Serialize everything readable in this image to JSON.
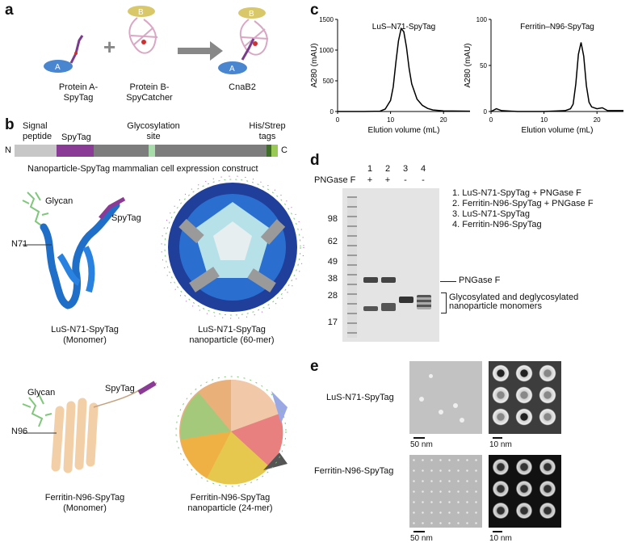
{
  "panels": {
    "a": "a",
    "b": "b",
    "c": "c",
    "d": "d",
    "e": "e"
  },
  "panel_a": {
    "circle_A": "A",
    "circle_B": "B",
    "circle_B2": "B",
    "circle_A2": "A",
    "label1": "Protein A-\nSpyTag",
    "label2": "Protein B-\nSpyCatcher",
    "label3": "CnaB2"
  },
  "panel_b": {
    "signal_peptide": "Signal\npeptide",
    "spytag": "SpyTag",
    "glyco_site": "Glycosylation\nsite",
    "his_strep": "His/Strep\ntags",
    "n_term": "N",
    "c_term": "C",
    "caption": "Nanoparticle-SpyTag mammalian cell expression construct",
    "glycan1": "Glycan",
    "spytag1": "SpyTag",
    "n71": "N71",
    "lus_mono": "LuS-N71-SpyTag\n(Monomer)",
    "lus_np": "LuS-N71-SpyTag\nnanoparticle (60-mer)",
    "glycan2": "Glycan",
    "spytag2": "SpyTag",
    "n96": "N96",
    "fer_mono": "Ferritin-N96-SpyTag\n(Monomer)",
    "fer_np": "Ferritin-N96-SpyTag\nnanoparticle (24-mer)"
  },
  "panel_c": {
    "chart_data": [
      {
        "type": "line",
        "title": "LuS–N71-SpyTag",
        "xlabel": "Elution volume (mL)",
        "ylabel": "A280 (mAU)",
        "xlim": [
          0,
          25
        ],
        "ylim": [
          0,
          1500
        ],
        "xticks": [
          "0",
          "10",
          "20"
        ],
        "yticks": [
          "0",
          "500",
          "1000",
          "1500"
        ],
        "series": [
          {
            "x": [
              0,
              5,
              8,
              9,
              10,
              10.5,
              11,
              11.5,
              12,
              12.5,
              13,
              13.5,
              14,
              15,
              16,
              17,
              18,
              20,
              25
            ],
            "y": [
              0,
              0,
              5,
              40,
              180,
              400,
              800,
              1150,
              1350,
              1300,
              1050,
              700,
              450,
              200,
              100,
              50,
              25,
              10,
              5
            ]
          }
        ]
      },
      {
        "type": "line",
        "title": "Ferritin–N96-SpyTag",
        "xlabel": "Elution volume (mL)",
        "ylabel": "A280 (mAU)",
        "xlim": [
          0,
          25
        ],
        "ylim": [
          0,
          100
        ],
        "xticks": [
          "0",
          "10",
          "20"
        ],
        "yticks": [
          "0",
          "50",
          "100"
        ],
        "series": [
          {
            "x": [
              0,
              1,
              2,
              5,
              10,
              14,
              15,
              15.5,
              16,
              16.5,
              17,
              17.5,
              18,
              18.5,
              19,
              20,
              21,
              22,
              25
            ],
            "y": [
              0,
              3,
              1,
              0,
              0,
              1,
              3,
              8,
              30,
              62,
              75,
              60,
              28,
              10,
              5,
              3,
              4,
              1,
              1
            ]
          }
        ]
      }
    ]
  },
  "panel_d": {
    "pngase_label": "PNGase F",
    "lanes": [
      "1",
      "2",
      "3",
      "4"
    ],
    "signs": [
      "+",
      "+",
      "-",
      "-"
    ],
    "markers": [
      "98",
      "62",
      "49",
      "38",
      "28",
      "17"
    ],
    "legend": [
      "1. LuS-N71-SpyTag + PNGase F",
      "2. Ferritin-N96-SpyTag + PNGase F",
      "3. LuS-N71-SpyTag",
      "4. Ferritin-N96-SpyTag"
    ],
    "pngase_band": "PNGase F",
    "mono_band": "Glycosylated and deglycosylated\nnanoparticle monomers"
  },
  "panel_e": {
    "row1": "LuS-N71-SpyTag",
    "row2": "Ferritin-N96-SpyTag",
    "scale1": "50 nm",
    "scale2": "10 nm",
    "scale3": "50 nm",
    "scale4": "10 nm"
  }
}
